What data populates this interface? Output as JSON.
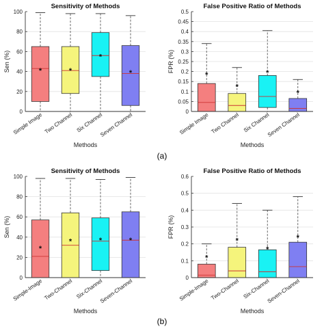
{
  "colors": {
    "simple": "#f47f7f",
    "two": "#f5f47c",
    "six": "#19f2f4",
    "seven": "#7f7ff2",
    "median": "#cc3333",
    "whisker": "#555555",
    "mean": "#111111"
  },
  "panel_labels": [
    "(a)",
    "(b)"
  ],
  "chart_data": [
    {
      "type": "box",
      "title": "Sensitivity of Methods",
      "xlabel": "Methods",
      "ylabel": "Sen (%)",
      "ylim": [
        0,
        100
      ],
      "yticks": [
        "0",
        "20",
        "40",
        "60",
        "80",
        "100"
      ],
      "categories": [
        "Simple Image",
        "Two Channel",
        "Six Channel",
        "Seven Channel"
      ],
      "boxes": [
        {
          "min": 0,
          "q1": 10,
          "median": 43,
          "q3": 65,
          "max": 99,
          "mean": 41
        },
        {
          "min": 0,
          "q1": 18,
          "median": 41,
          "q3": 65,
          "max": 98,
          "mean": 41
        },
        {
          "min": 0,
          "q1": 35,
          "median": 56,
          "q3": 79,
          "max": 98,
          "mean": 55
        },
        {
          "min": 0,
          "q1": 6,
          "median": 38,
          "q3": 66,
          "max": 96,
          "mean": 39
        }
      ]
    },
    {
      "type": "box",
      "title": "False Positive Ratio of Methods",
      "xlabel": "Methods",
      "ylabel": "FPR (%)",
      "ylim": [
        0,
        0.5
      ],
      "yticks": [
        "0",
        "0.05",
        "0.1",
        "0.15",
        "0.2",
        "0.25",
        "0.3",
        "0.35",
        "0.4",
        "0.45",
        "0.5"
      ],
      "categories": [
        "Simple Image",
        "Two Channel",
        "Six Channel",
        "Seven Channel"
      ],
      "boxes": [
        {
          "min": 0,
          "q1": 0,
          "median": 0.045,
          "q3": 0.14,
          "max": 0.34,
          "mean": 0.185
        },
        {
          "min": 0,
          "q1": 0,
          "median": 0.03,
          "q3": 0.09,
          "max": 0.22,
          "mean": 0.125
        },
        {
          "min": 0,
          "q1": 0.02,
          "median": 0.075,
          "q3": 0.18,
          "max": 0.405,
          "mean": 0.195
        },
        {
          "min": 0,
          "q1": 0,
          "median": 0.015,
          "q3": 0.065,
          "max": 0.16,
          "mean": 0.095
        }
      ]
    },
    {
      "type": "box",
      "title": "Sensitivity of Methods",
      "xlabel": "Methods",
      "ylabel": "Sen (%)",
      "ylim": [
        0,
        100
      ],
      "yticks": [
        "0",
        "20",
        "40",
        "60",
        "80",
        "100"
      ],
      "categories": [
        "Simple-Image",
        "Two-Channel",
        "Six-Channel",
        "Seven-Channel"
      ],
      "boxes": [
        {
          "min": 0,
          "q1": 0,
          "median": 21,
          "q3": 57,
          "max": 98,
          "mean": 29
        },
        {
          "min": 0,
          "q1": 0,
          "median": 32,
          "q3": 64,
          "max": 98,
          "mean": 36
        },
        {
          "min": 0,
          "q1": 7,
          "median": 36,
          "q3": 59,
          "max": 97,
          "mean": 37
        },
        {
          "min": 0,
          "q1": 0,
          "median": 37,
          "q3": 65,
          "max": 99,
          "mean": 37
        }
      ]
    },
    {
      "type": "box",
      "title": "False Positive Ratio of Methods",
      "xlabel": "Methods",
      "ylabel": "FPR (%)",
      "ylim": [
        0,
        0.6
      ],
      "yticks": [
        "0",
        "0.1",
        "0.2",
        "0.3",
        "0.4",
        "0.5",
        "0.6"
      ],
      "categories": [
        "Simple-Image",
        "Two-Channel",
        "Six-Channel",
        "Seven-Channel"
      ],
      "boxes": [
        {
          "min": 0,
          "q1": 0,
          "median": 0.015,
          "q3": 0.08,
          "max": 0.2,
          "mean": 0.12
        },
        {
          "min": 0,
          "q1": 0,
          "median": 0.04,
          "q3": 0.18,
          "max": 0.44,
          "mean": 0.22
        },
        {
          "min": 0,
          "q1": 0,
          "median": 0.035,
          "q3": 0.165,
          "max": 0.4,
          "mean": 0.17
        },
        {
          "min": 0,
          "q1": 0,
          "median": 0.065,
          "q3": 0.21,
          "max": 0.48,
          "mean": 0.24
        }
      ]
    }
  ]
}
